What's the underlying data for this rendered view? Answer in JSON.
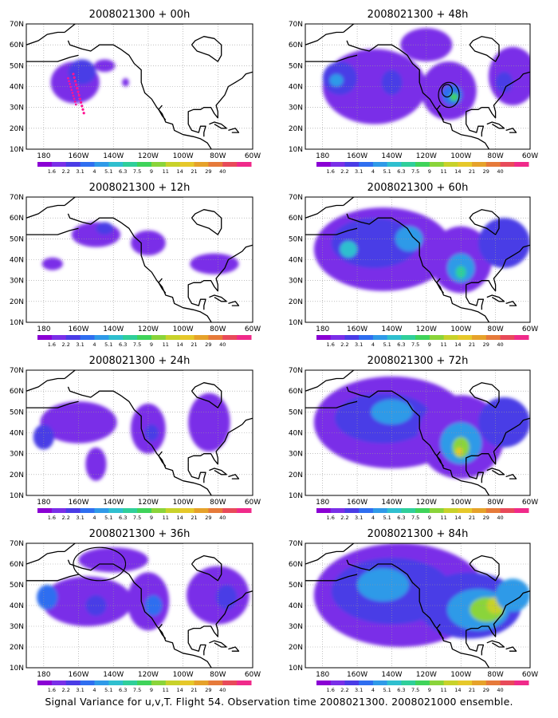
{
  "caption": "Signal Variance for u,v,T. Flight 54. Observation time 2008021300. 2008021000 ensemble.",
  "map": {
    "lat_labels": [
      "70N",
      "60N",
      "50N",
      "40N",
      "30N",
      "20N",
      "10N"
    ],
    "lon_labels": [
      "180",
      "160W",
      "140W",
      "120W",
      "100W",
      "80W",
      "60W"
    ]
  },
  "colorbar": {
    "colors": [
      "#8a00d4",
      "#7a2fe8",
      "#4a3ce6",
      "#2f6ef0",
      "#2f9ae8",
      "#2fbfcf",
      "#2fcf9a",
      "#3fd35a",
      "#8ad43a",
      "#c8d22a",
      "#e6c82a",
      "#e6a22a",
      "#e67a3a",
      "#e84a5a",
      "#f02a8a"
    ],
    "labels": [
      "1.6",
      "2.2",
      "3.1",
      "4",
      "5.1",
      "6.3",
      "7.5",
      "9",
      "11",
      "14",
      "21",
      "29",
      "40"
    ]
  },
  "panels": [
    {
      "title": "2008021300 + 00h",
      "blobs": [
        {
          "cx": -162,
          "cy": 42,
          "rx": 14,
          "ry": 10,
          "level": 1
        },
        {
          "cx": -158,
          "cy": 47,
          "rx": 8,
          "ry": 6,
          "level": 2
        },
        {
          "cx": -145,
          "cy": 50,
          "rx": 6,
          "ry": 3,
          "level": 1
        },
        {
          "cx": -133,
          "cy": 42,
          "rx": 2,
          "ry": 2,
          "level": 1
        }
      ],
      "flight_track": true
    },
    {
      "title": "2008021300 + 12h",
      "blobs": [
        {
          "cx": -150,
          "cy": 52,
          "rx": 14,
          "ry": 6,
          "level": 1
        },
        {
          "cx": -145,
          "cy": 55,
          "rx": 5,
          "ry": 3,
          "level": 2
        },
        {
          "cx": -120,
          "cy": 48,
          "rx": 10,
          "ry": 6,
          "level": 1
        },
        {
          "cx": -82,
          "cy": 38,
          "rx": 14,
          "ry": 5,
          "level": 1
        },
        {
          "cx": -175,
          "cy": 38,
          "rx": 6,
          "ry": 3,
          "level": 1
        }
      ]
    },
    {
      "title": "2008021300 + 24h",
      "blobs": [
        {
          "cx": -160,
          "cy": 45,
          "rx": 22,
          "ry": 10,
          "level": 1
        },
        {
          "cx": -120,
          "cy": 42,
          "rx": 10,
          "ry": 12,
          "level": 1
        },
        {
          "cx": -118,
          "cy": 40,
          "rx": 4,
          "ry": 4,
          "level": 2
        },
        {
          "cx": -85,
          "cy": 45,
          "rx": 12,
          "ry": 14,
          "level": 1
        },
        {
          "cx": -180,
          "cy": 38,
          "rx": 6,
          "ry": 6,
          "level": 2
        },
        {
          "cx": -150,
          "cy": 25,
          "rx": 6,
          "ry": 8,
          "level": 1
        }
      ]
    },
    {
      "title": "2008021300 + 36h",
      "blobs": [
        {
          "cx": -155,
          "cy": 42,
          "rx": 26,
          "ry": 12,
          "level": 1
        },
        {
          "cx": -178,
          "cy": 44,
          "rx": 6,
          "ry": 6,
          "level": 3
        },
        {
          "cx": -150,
          "cy": 40,
          "rx": 6,
          "ry": 5,
          "level": 2
        },
        {
          "cx": -120,
          "cy": 42,
          "rx": 12,
          "ry": 14,
          "level": 1
        },
        {
          "cx": -117,
          "cy": 40,
          "rx": 5,
          "ry": 5,
          "level": 3
        },
        {
          "cx": -80,
          "cy": 45,
          "rx": 18,
          "ry": 14,
          "level": 1
        },
        {
          "cx": -75,
          "cy": 44,
          "rx": 6,
          "ry": 6,
          "level": 2
        },
        {
          "cx": -140,
          "cy": 62,
          "rx": 20,
          "ry": 6,
          "level": 1
        }
      ],
      "circles": [
        {
          "cx": -148,
          "cy": 60,
          "rx": 15,
          "ry": 8
        }
      ]
    },
    {
      "title": "2008021300 + 48h",
      "blobs": [
        {
          "cx": -150,
          "cy": 40,
          "rx": 30,
          "ry": 18,
          "level": 1
        },
        {
          "cx": -170,
          "cy": 44,
          "rx": 10,
          "ry": 8,
          "level": 2
        },
        {
          "cx": -172,
          "cy": 43,
          "rx": 4,
          "ry": 3,
          "level": 4
        },
        {
          "cx": -140,
          "cy": 42,
          "rx": 6,
          "ry": 6,
          "level": 2
        },
        {
          "cx": -107,
          "cy": 38,
          "rx": 16,
          "ry": 14,
          "level": 1
        },
        {
          "cx": -105,
          "cy": 36,
          "rx": 6,
          "ry": 5,
          "level": 3
        },
        {
          "cx": -104,
          "cy": 35,
          "rx": 2.5,
          "ry": 2,
          "level": 7
        },
        {
          "cx": -70,
          "cy": 45,
          "rx": 14,
          "ry": 14,
          "level": 1
        },
        {
          "cx": -75,
          "cy": 42,
          "rx": 5,
          "ry": 5,
          "level": 2
        },
        {
          "cx": -120,
          "cy": 60,
          "rx": 15,
          "ry": 8,
          "level": 1
        }
      ],
      "circles": [
        {
          "cx": -107,
          "cy": 36,
          "rx": 6,
          "ry": 6
        },
        {
          "cx": -108,
          "cy": 38,
          "rx": 3,
          "ry": 3
        }
      ]
    },
    {
      "title": "2008021300 + 60h",
      "blobs": [
        {
          "cx": -145,
          "cy": 45,
          "rx": 40,
          "ry": 20,
          "level": 1
        },
        {
          "cx": -150,
          "cy": 48,
          "rx": 25,
          "ry": 12,
          "level": 2
        },
        {
          "cx": -165,
          "cy": 45,
          "rx": 5,
          "ry": 4,
          "level": 5
        },
        {
          "cx": -130,
          "cy": 50,
          "rx": 8,
          "ry": 6,
          "level": 4
        },
        {
          "cx": -100,
          "cy": 40,
          "rx": 18,
          "ry": 16,
          "level": 1
        },
        {
          "cx": -100,
          "cy": 36,
          "rx": 8,
          "ry": 7,
          "level": 4
        },
        {
          "cx": -100,
          "cy": 34,
          "rx": 3,
          "ry": 3,
          "level": 6
        },
        {
          "cx": -75,
          "cy": 48,
          "rx": 15,
          "ry": 12,
          "level": 2
        }
      ]
    },
    {
      "title": "2008021300 + 72h",
      "blobs": [
        {
          "cx": -140,
          "cy": 45,
          "rx": 45,
          "ry": 22,
          "level": 1
        },
        {
          "cx": -145,
          "cy": 47,
          "rx": 28,
          "ry": 12,
          "level": 2
        },
        {
          "cx": -140,
          "cy": 50,
          "rx": 12,
          "ry": 6,
          "level": 4
        },
        {
          "cx": -100,
          "cy": 38,
          "rx": 25,
          "ry": 20,
          "level": 1
        },
        {
          "cx": -100,
          "cy": 35,
          "rx": 12,
          "ry": 10,
          "level": 4
        },
        {
          "cx": -100,
          "cy": 33,
          "rx": 5,
          "ry": 5,
          "level": 8
        },
        {
          "cx": -101,
          "cy": 31,
          "rx": 2,
          "ry": 2,
          "level": 10
        },
        {
          "cx": -75,
          "cy": 45,
          "rx": 15,
          "ry": 12,
          "level": 2
        }
      ]
    },
    {
      "title": "2008021300 + 84h",
      "blobs": [
        {
          "cx": -135,
          "cy": 45,
          "rx": 50,
          "ry": 25,
          "level": 1
        },
        {
          "cx": -140,
          "cy": 47,
          "rx": 35,
          "ry": 16,
          "level": 2
        },
        {
          "cx": -145,
          "cy": 50,
          "rx": 15,
          "ry": 8,
          "level": 4
        },
        {
          "cx": -95,
          "cy": 40,
          "rx": 30,
          "ry": 16,
          "level": 2
        },
        {
          "cx": -90,
          "cy": 38,
          "rx": 18,
          "ry": 10,
          "level": 4
        },
        {
          "cx": -85,
          "cy": 38,
          "rx": 10,
          "ry": 6,
          "level": 8
        },
        {
          "cx": -80,
          "cy": 40,
          "rx": 5,
          "ry": 4,
          "level": 9
        },
        {
          "cx": -70,
          "cy": 45,
          "rx": 10,
          "ry": 8,
          "level": 4
        }
      ]
    }
  ]
}
